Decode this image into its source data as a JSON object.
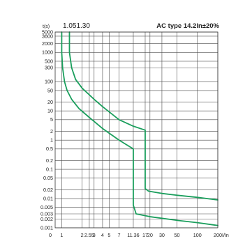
{
  "chart_data": {
    "type": "line",
    "title": "AC type 14.2In±20%",
    "reference": "1.051.30",
    "xlabel": "I/In",
    "ylabel": "t(s)",
    "x_scale": "log",
    "y_scale": "log",
    "xlim": [
      0.8,
      200
    ],
    "ylim": [
      0.001,
      5000
    ],
    "x_ticks": [
      {
        "value": 1,
        "label": "1"
      },
      {
        "value": 2,
        "label": "2"
      },
      {
        "value": 2.55,
        "label": "2.55"
      },
      {
        "value": 3,
        "label": "3"
      },
      {
        "value": 4,
        "label": "4"
      },
      {
        "value": 5,
        "label": "5"
      },
      {
        "value": 7,
        "label": "7"
      },
      {
        "value": 11.36,
        "label": "11.36"
      },
      {
        "value": 17,
        "label": "17"
      },
      {
        "value": 20,
        "label": "20"
      },
      {
        "value": 30,
        "label": "30"
      },
      {
        "value": 50,
        "label": "50"
      },
      {
        "value": 100,
        "label": "100"
      },
      {
        "value": 200,
        "label": "200"
      }
    ],
    "x_origin_label": "0",
    "y_ticks": [
      {
        "value": 5000,
        "label": "5000"
      },
      {
        "value": 3600,
        "label": "3600"
      },
      {
        "value": 2000,
        "label": "2000"
      },
      {
        "value": 1000,
        "label": "1000"
      },
      {
        "value": 500,
        "label": "500"
      },
      {
        "value": 300,
        "label": "300"
      },
      {
        "value": 100,
        "label": "100"
      },
      {
        "value": 50,
        "label": "50"
      },
      {
        "value": 20,
        "label": "20"
      },
      {
        "value": 10,
        "label": "10"
      },
      {
        "value": 5,
        "label": "5"
      },
      {
        "value": 2,
        "label": "2"
      },
      {
        "value": 1,
        "label": "1"
      },
      {
        "value": 0.5,
        "label": "0.5"
      },
      {
        "value": 0.2,
        "label": "0.2"
      },
      {
        "value": 0.1,
        "label": "0.1"
      },
      {
        "value": 0.05,
        "label": "0.05"
      },
      {
        "value": 0.02,
        "label": "0.02"
      },
      {
        "value": 0.01,
        "label": "0.01"
      },
      {
        "value": 0.005,
        "label": "0.005"
      },
      {
        "value": 0.003,
        "label": "0.003"
      },
      {
        "value": 0.002,
        "label": "0.002"
      },
      {
        "value": 0.001,
        "label": "0.001"
      }
    ],
    "grid": true,
    "line_color": "#1a9e5c",
    "series": [
      {
        "points": [
          [
            1.0,
            5000
          ],
          [
            1.0,
            1000
          ],
          [
            1.03,
            300
          ],
          [
            1.1,
            100
          ],
          [
            1.2,
            50
          ],
          [
            1.4,
            25
          ],
          [
            1.8,
            12
          ],
          [
            2.55,
            6
          ],
          [
            4,
            2.5
          ],
          [
            7,
            1
          ],
          [
            11.36,
            0.5
          ],
          [
            11.36,
            0.006
          ],
          [
            12.5,
            0.003
          ],
          [
            20,
            0.0024
          ],
          [
            50,
            0.0018
          ],
          [
            100,
            0.0015
          ],
          [
            200,
            0.0012
          ]
        ]
      },
      {
        "points": [
          [
            1.3,
            5000
          ],
          [
            1.3,
            1000
          ],
          [
            1.4,
            300
          ],
          [
            1.6,
            120
          ],
          [
            2,
            60
          ],
          [
            3,
            25
          ],
          [
            4,
            14
          ],
          [
            7,
            5
          ],
          [
            11.36,
            3
          ],
          [
            17,
            2.2
          ],
          [
            17,
            0.022
          ],
          [
            19,
            0.018
          ],
          [
            30,
            0.015
          ],
          [
            50,
            0.013
          ],
          [
            100,
            0.011
          ],
          [
            200,
            0.009
          ]
        ]
      }
    ]
  }
}
